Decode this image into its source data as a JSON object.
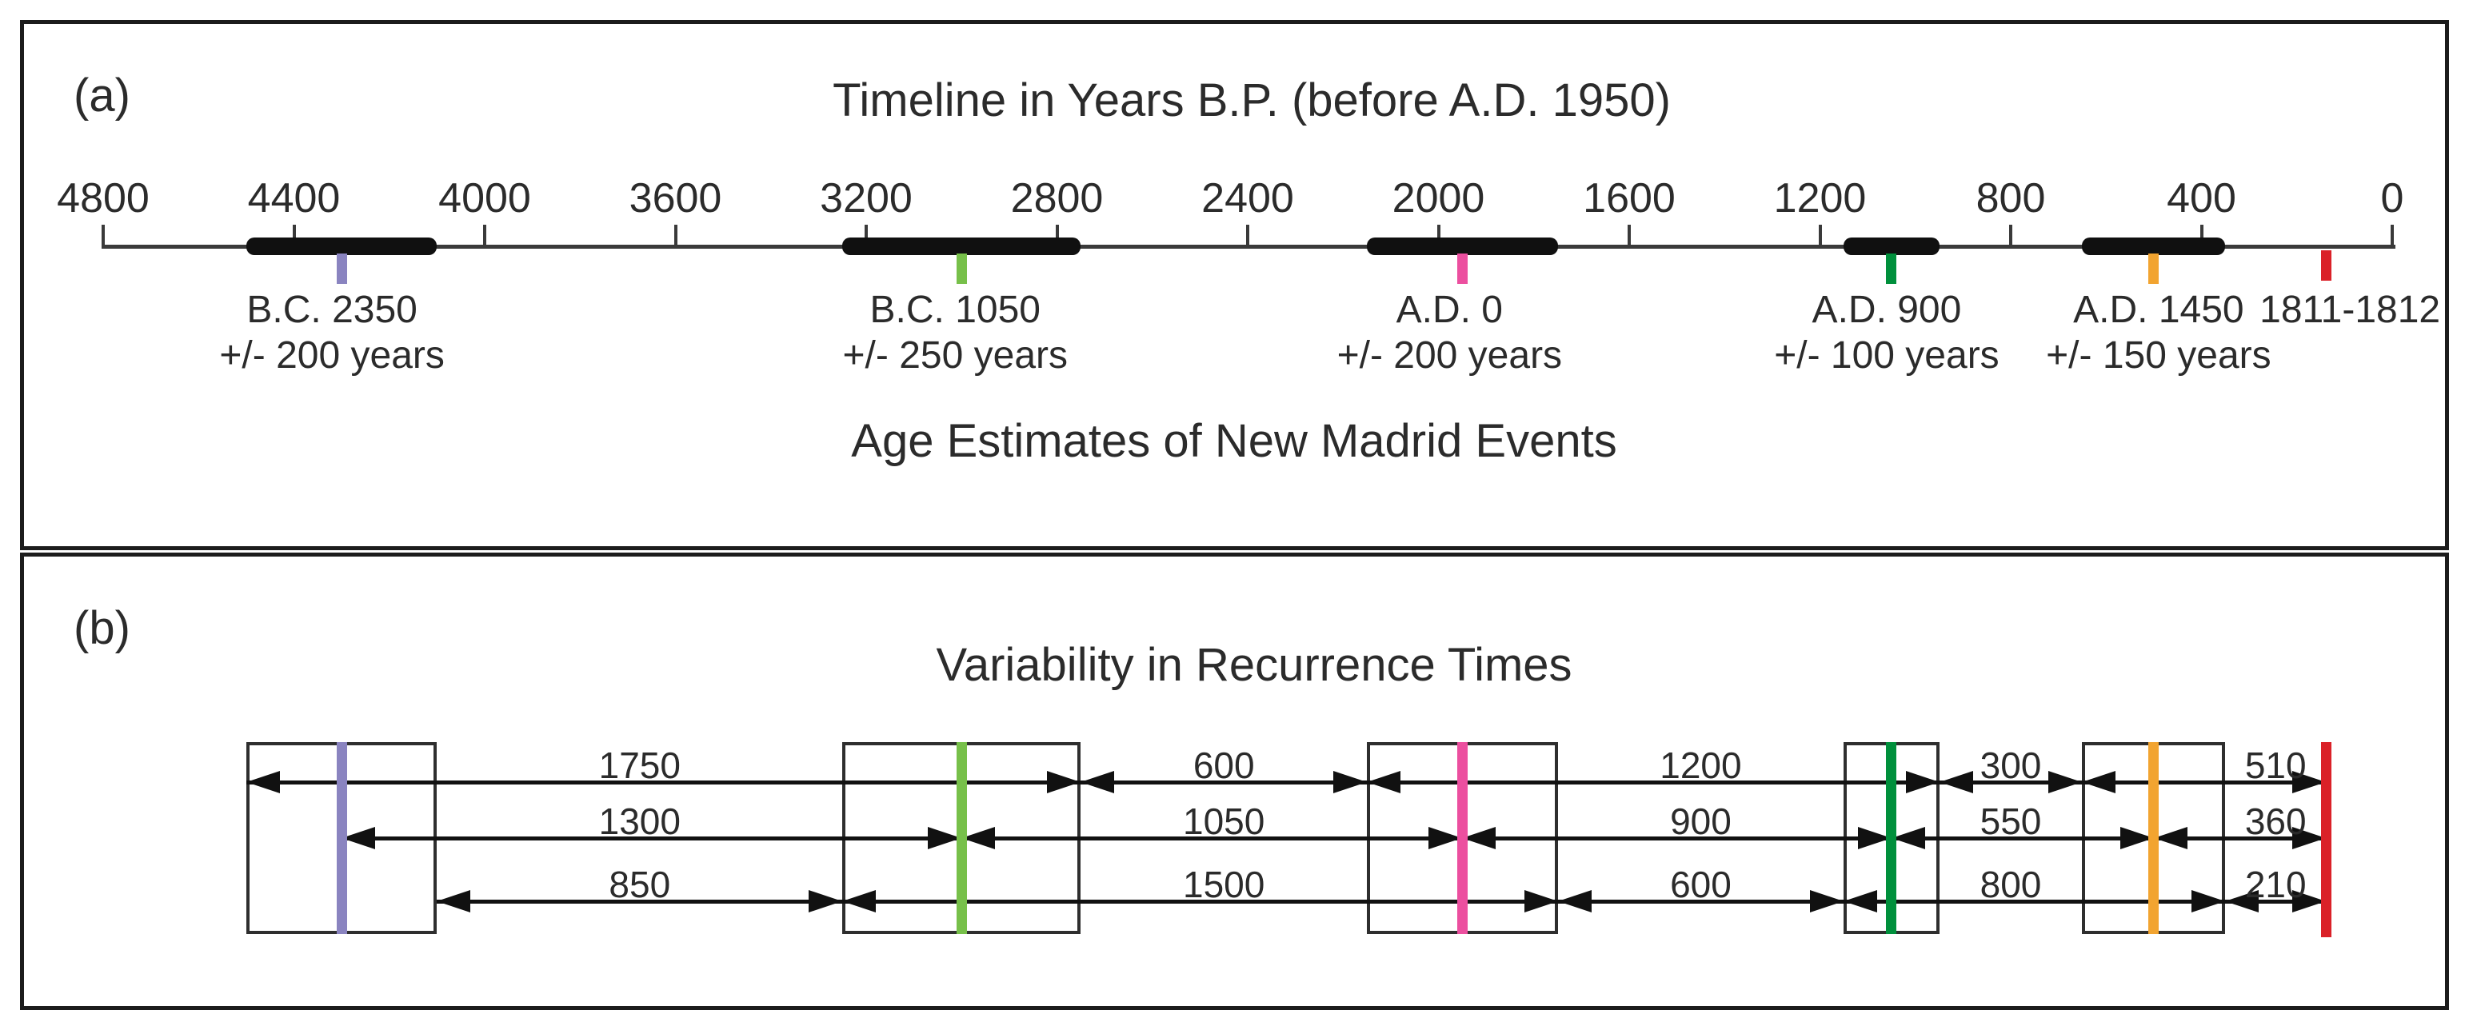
{
  "figure": {
    "background": "#ffffff",
    "border_color": "#1c1c1c",
    "text_color": "#2b2b2b",
    "panel_a": {
      "tag": "(a)",
      "title": "Timeline in Years B.P. (before A.D. 1950)",
      "subtitle": "Age Estimates of New Madrid Events",
      "axis": {
        "max_bp": 4800,
        "min_bp": 0,
        "tick_step_years": 400,
        "tick_labels": [
          "4800",
          "4400",
          "4000",
          "3600",
          "3200",
          "2800",
          "2400",
          "2000",
          "1600",
          "1200",
          "800",
          "400",
          "0"
        ],
        "line_color": "#3a3a3a",
        "error_bar_color": "#101010"
      },
      "events": [
        {
          "id": "event-bc-2350",
          "label": "B.C. 2350",
          "error_label": "+/- 200 years",
          "bp": 4300,
          "error_years": 200,
          "color": "#8a84c0",
          "label_dx": -12
        },
        {
          "id": "event-bc-1050",
          "label": "B.C. 1050",
          "error_label": "+/- 250 years",
          "bp": 3000,
          "error_years": 250,
          "color": "#77c04a",
          "label_dx": -8
        },
        {
          "id": "event-ad-0",
          "label": "A.D. 0",
          "error_label": "+/- 200 years",
          "bp": 1950,
          "error_years": 200,
          "color": "#ec4f9f",
          "label_dx": -16
        },
        {
          "id": "event-ad-900",
          "label": "A.D. 900",
          "error_label": "+/- 100 years",
          "bp": 1050,
          "error_years": 100,
          "color": "#00903c",
          "label_dx": -6
        },
        {
          "id": "event-ad-1450",
          "label": "A.D. 1450",
          "error_label": "+/- 150 years",
          "bp": 500,
          "error_years": 150,
          "color": "#f2a430",
          "label_dx": 6
        },
        {
          "id": "event-1811-1812",
          "label": "1811-1812",
          "error_label": "",
          "bp": 139,
          "error_years": 0,
          "color": "#da2128",
          "label_dx": 30
        }
      ]
    },
    "panel_b": {
      "tag": "(b)",
      "title": "Variability in Recurrence Times",
      "arrow_color": "#111111",
      "box_border_color": "#2e2e2e",
      "rows": [
        {
          "id": "row-top",
          "segments": [
            {
              "value": "1750",
              "from_event": 0,
              "from_side": "older",
              "to_event": 1,
              "to_side": "younger"
            },
            {
              "value": "600",
              "from_event": 1,
              "from_side": "younger",
              "to_event": 2,
              "to_side": "older"
            },
            {
              "value": "1200",
              "from_event": 2,
              "from_side": "older",
              "to_event": 3,
              "to_side": "younger"
            },
            {
              "value": "300",
              "from_event": 3,
              "from_side": "younger",
              "to_event": 4,
              "to_side": "older"
            },
            {
              "value": "510",
              "from_event": 4,
              "from_side": "older",
              "to_event": 5,
              "to_side": "center"
            }
          ]
        },
        {
          "id": "row-middle",
          "segments": [
            {
              "value": "1300",
              "from_event": 0,
              "from_side": "center",
              "to_event": 1,
              "to_side": "center"
            },
            {
              "value": "1050",
              "from_event": 1,
              "from_side": "center",
              "to_event": 2,
              "to_side": "center"
            },
            {
              "value": "900",
              "from_event": 2,
              "from_side": "center",
              "to_event": 3,
              "to_side": "center"
            },
            {
              "value": "550",
              "from_event": 3,
              "from_side": "center",
              "to_event": 4,
              "to_side": "center"
            },
            {
              "value": "360",
              "from_event": 4,
              "from_side": "center",
              "to_event": 5,
              "to_side": "center"
            }
          ]
        },
        {
          "id": "row-bottom",
          "segments": [
            {
              "value": "850",
              "from_event": 0,
              "from_side": "younger",
              "to_event": 1,
              "to_side": "older"
            },
            {
              "value": "1500",
              "from_event": 1,
              "from_side": "older",
              "to_event": 2,
              "to_side": "younger"
            },
            {
              "value": "600",
              "from_event": 2,
              "from_side": "younger",
              "to_event": 3,
              "to_side": "older"
            },
            {
              "value": "800",
              "from_event": 3,
              "from_side": "older",
              "to_event": 4,
              "to_side": "younger"
            },
            {
              "value": "210",
              "from_event": 4,
              "from_side": "younger",
              "to_event": 5,
              "to_side": "center"
            }
          ]
        }
      ]
    }
  }
}
